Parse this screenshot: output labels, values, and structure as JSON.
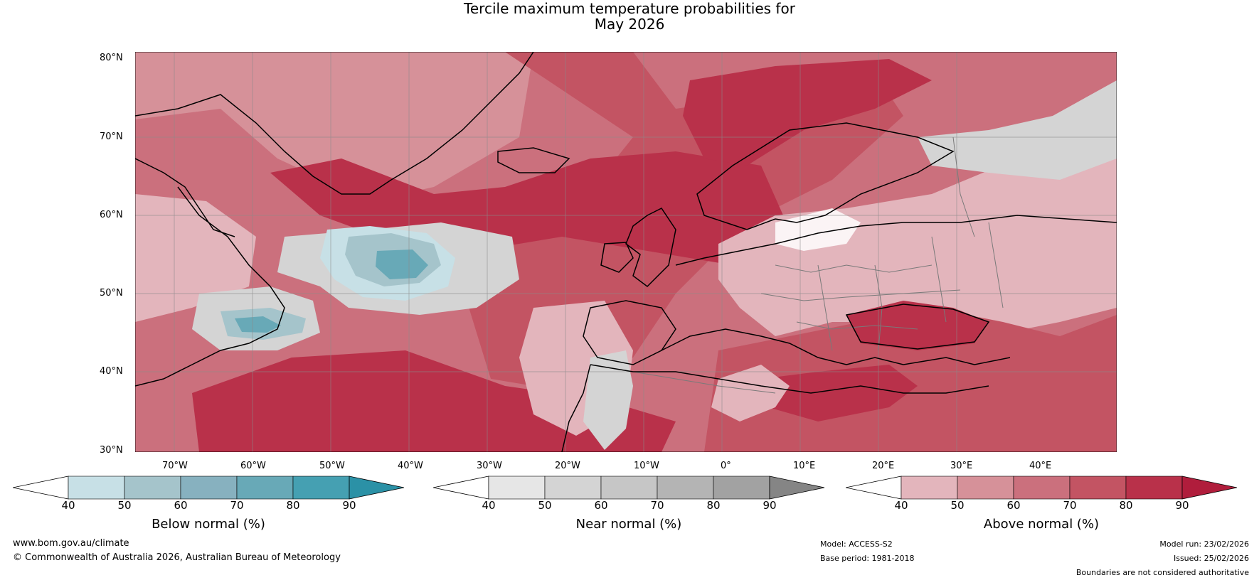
{
  "title": {
    "line1": "Tercile maximum temperature probabilities for",
    "line2": "May 2026"
  },
  "lat_labels": [
    "80°N",
    "70°N",
    "60°N",
    "50°N",
    "40°N",
    "30°N"
  ],
  "lon_labels": [
    "70°W",
    "60°W",
    "50°W",
    "40°W",
    "30°W",
    "20°W",
    "10°W",
    "0°",
    "10°E",
    "20°E",
    "30°E",
    "40°E"
  ],
  "colorbars": [
    {
      "label": "Below normal (%)",
      "ticks": [
        "40",
        "50",
        "60",
        "70",
        "80",
        "90"
      ],
      "low_color": "#ffffff",
      "colors": [
        "#c7e0e6",
        "#a5c4cb",
        "#87b1bf",
        "#68a9b7",
        "#45a0b2"
      ],
      "high_color": "#2b91a6"
    },
    {
      "label": "Near normal (%)",
      "ticks": [
        "40",
        "50",
        "60",
        "70",
        "80",
        "90"
      ],
      "low_color": "#ffffff",
      "colors": [
        "#e6e6e6",
        "#d4d4d4",
        "#c6c6c6",
        "#b4b4b4",
        "#a2a2a2"
      ],
      "high_color": "#858585"
    },
    {
      "label": "Above normal (%)",
      "ticks": [
        "40",
        "50",
        "60",
        "70",
        "80",
        "90"
      ],
      "low_color": "#ffffff",
      "colors": [
        "#e3b5bc",
        "#d69199",
        "#cb707d",
        "#c35463",
        "#b9314a"
      ],
      "high_color": "#b01d3c"
    }
  ],
  "map_colors": {
    "above_40": "#e3b5bc",
    "above_50": "#d69199",
    "above_60": "#cb707d",
    "above_70": "#c35463",
    "above_80": "#b9314a",
    "near": "#d4d4d4",
    "below_50": "#c7e0e6",
    "below_60": "#a5c4cb",
    "below_70": "#68a9b7",
    "coast": "#000000",
    "border": "#7a7a7a",
    "grid": "#8a8a8a"
  },
  "footer": {
    "website": "www.bom.gov.au/climate",
    "copyright": "© Commonwealth of Australia 2026, Australian Bureau of Meteorology",
    "model": "Model: ACCESS-S2",
    "base_period": "Base period: 1981-2018",
    "model_run": "Model run: 23/02/2026",
    "issued": "Issued: 25/02/2026",
    "disclaimer": "Boundaries are not considered authoritative"
  }
}
